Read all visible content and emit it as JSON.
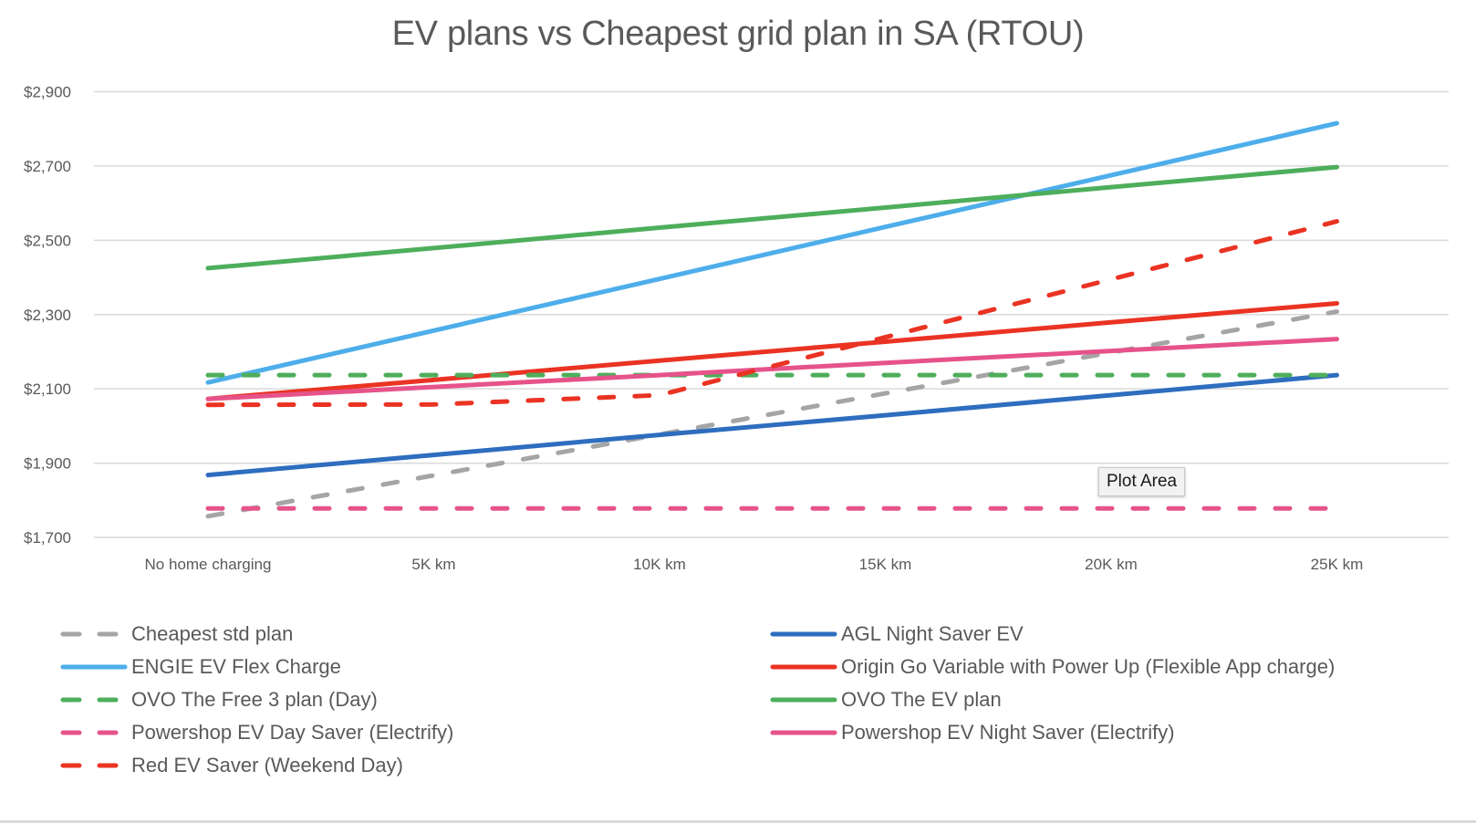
{
  "chart_data": {
    "type": "line",
    "title": "EV plans vs Cheapest grid plan in SA (RTOU)",
    "xlabel": "",
    "ylabel": "",
    "categories": [
      "No home charging",
      "5K km",
      "10K km",
      "15K km",
      "20K km",
      "25K km"
    ],
    "ylim": [
      1700,
      2900
    ],
    "yticks": [
      1700,
      1900,
      2100,
      2300,
      2500,
      2700,
      2900
    ],
    "ytick_labels": [
      "$1,700",
      "$1,900",
      "$2,100",
      "$2,300",
      "$2,500",
      "$2,700",
      "$2,900"
    ],
    "grid": true,
    "legend_position": "bottom",
    "series": [
      {
        "name": "Cheapest std plan",
        "color": "#A5A5A5",
        "style": "dashed",
        "values": [
          1757,
          1867,
          1977,
          2088,
          2198,
          2308
        ]
      },
      {
        "name": "AGL Night Saver EV",
        "color": "#2E6DBF",
        "style": "solid",
        "values": [
          1868,
          1922,
          1976,
          2029,
          2083,
          2137
        ]
      },
      {
        "name": "ENGIE EV Flex Charge",
        "color": "#4DAEEA",
        "style": "solid",
        "values": [
          2117,
          2257,
          2396,
          2536,
          2675,
          2815
        ]
      },
      {
        "name": "Origin Go Variable with Power Up (Flexible App charge)",
        "color": "#EA3323",
        "style": "solid",
        "values": [
          2073,
          2124,
          2176,
          2227,
          2279,
          2330
        ]
      },
      {
        "name": "OVO The Free 3 plan (Day)",
        "color": "#4EAE5B",
        "style": "dashed",
        "values": [
          2137,
          2137,
          2137,
          2137,
          2137,
          2137
        ]
      },
      {
        "name": "OVO The EV plan",
        "color": "#4EAE5B",
        "style": "solid",
        "values": [
          2425,
          2479,
          2534,
          2588,
          2643,
          2697
        ]
      },
      {
        "name": "Powershop EV Day Saver (Electrify)",
        "color": "#E6538A",
        "style": "dashed",
        "values": [
          1778,
          1778,
          1778,
          1778,
          1778,
          1778
        ]
      },
      {
        "name": "Powershop EV Night Saver (Electrify)",
        "color": "#E6538A",
        "style": "solid",
        "values": [
          2073,
          2105,
          2137,
          2170,
          2202,
          2234
        ]
      },
      {
        "name": "Red EV Saver (Weekend Day)",
        "color": "#EA3323",
        "style": "dashed",
        "values": [
          2057,
          2058,
          2083,
          2239,
          2395,
          2551
        ]
      }
    ],
    "legend_order_left": [
      0,
      2,
      4,
      6,
      8
    ],
    "legend_order_right": [
      1,
      3,
      5,
      7
    ]
  },
  "tooltip": {
    "text": "Plot Area"
  }
}
